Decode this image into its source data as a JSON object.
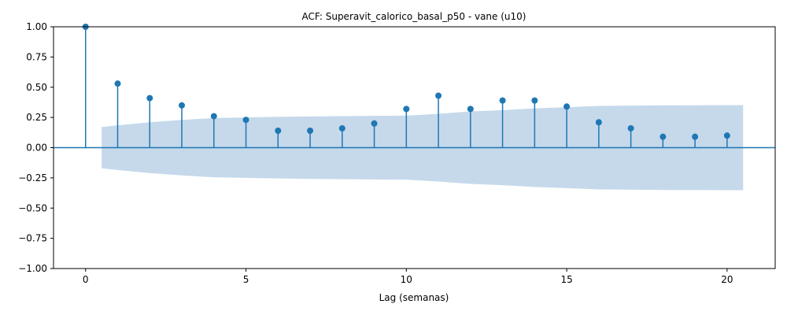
{
  "chart_data": {
    "type": "stem",
    "title": "ACF: Superavit_calorico_basal_p50 - vane (u10)",
    "xlabel": "Lag (semanas)",
    "ylabel": "",
    "xlim": [
      -1,
      21.5
    ],
    "ylim": [
      -1.0,
      1.0
    ],
    "xticks": [
      0,
      5,
      10,
      15,
      20
    ],
    "xtick_labels": [
      "0",
      "5",
      "10",
      "15",
      "20"
    ],
    "yticks": [
      -1.0,
      -0.75,
      -0.5,
      -0.25,
      0.0,
      0.25,
      0.5,
      0.75,
      1.0
    ],
    "ytick_labels": [
      "−1.00",
      "−0.75",
      "−0.50",
      "−0.25",
      "0.00",
      "0.25",
      "0.50",
      "0.75",
      "1.00"
    ],
    "grid": false,
    "series": [
      {
        "x": [
          0,
          1,
          2,
          3,
          4,
          5,
          6,
          7,
          8,
          9,
          10,
          11,
          12,
          13,
          14,
          15,
          16,
          17,
          18,
          19,
          20
        ],
        "values": [
          1.0,
          0.53,
          0.41,
          0.35,
          0.26,
          0.23,
          0.14,
          0.14,
          0.16,
          0.2,
          0.32,
          0.43,
          0.32,
          0.39,
          0.39,
          0.34,
          0.21,
          0.16,
          0.09,
          0.09,
          0.1
        ]
      }
    ],
    "confidence_band": {
      "x": [
        0.5,
        1,
        2,
        3,
        4,
        5,
        6,
        7,
        8,
        9,
        10,
        11,
        12,
        13,
        14,
        15,
        16,
        17,
        18,
        19,
        20,
        20.5
      ],
      "upper": [
        0.17,
        0.185,
        0.21,
        0.23,
        0.245,
        0.25,
        0.255,
        0.258,
        0.261,
        0.263,
        0.265,
        0.28,
        0.3,
        0.31,
        0.325,
        0.335,
        0.345,
        0.348,
        0.35,
        0.351,
        0.352,
        0.352
      ]
    },
    "colors": {
      "stem": "#1f77b4",
      "band": "#c5d9eb",
      "zero_line": "#1f77b4"
    }
  }
}
